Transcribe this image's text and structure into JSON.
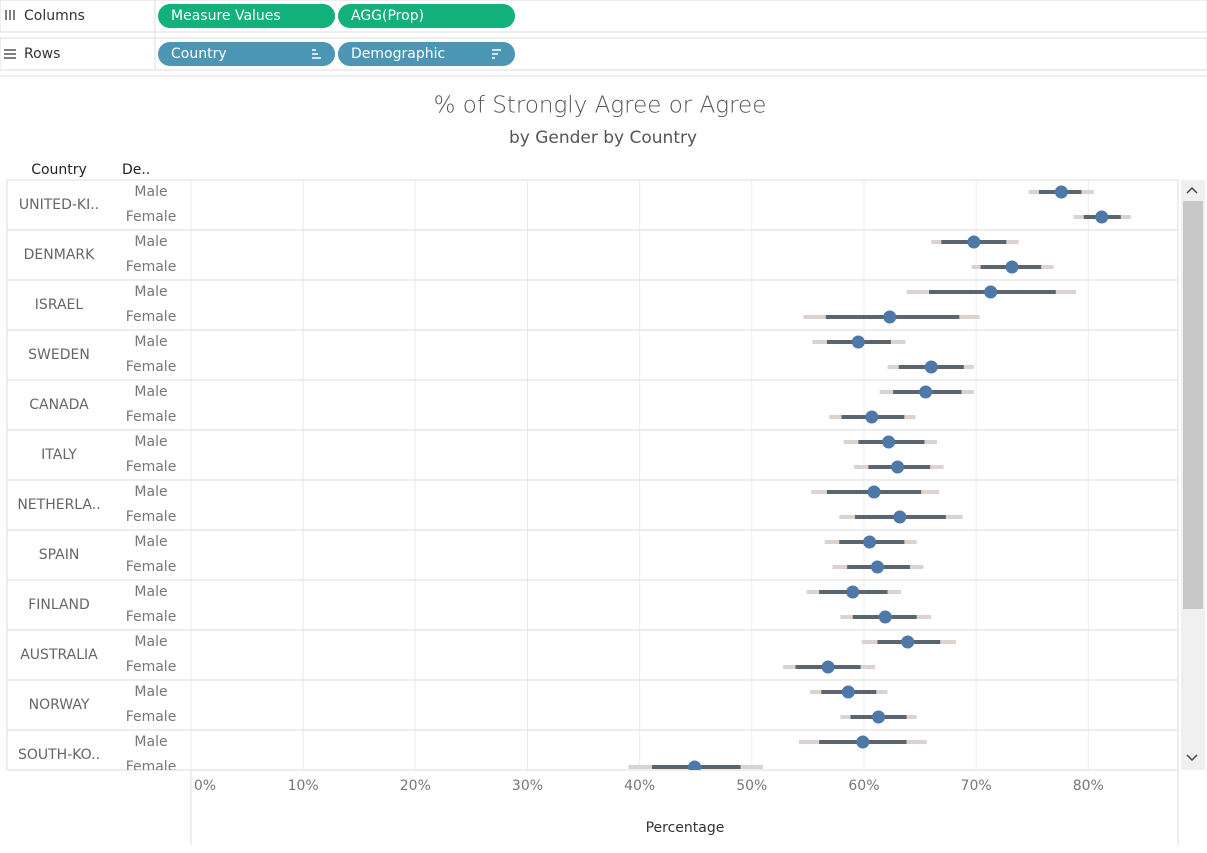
{
  "shelves": {
    "columns": {
      "label": "Columns",
      "pills": [
        "Measure Values",
        "AGG(Prop)"
      ]
    },
    "rows": {
      "label": "Rows",
      "pills": [
        "Country",
        "Demographic"
      ]
    }
  },
  "chart_data": {
    "type": "dot-interval",
    "title": "% of Strongly Agree or Agree",
    "subtitle": "by Gender by Country",
    "row_header": "Country",
    "group_header": "De..",
    "x_label": "Percentage",
    "xlim": [
      0,
      88
    ],
    "xticks": [
      {
        "value": 0,
        "label": "0%"
      },
      {
        "value": 10,
        "label": "10%"
      },
      {
        "value": 20,
        "label": "20%"
      },
      {
        "value": 30,
        "label": "30%"
      },
      {
        "value": 40,
        "label": "40%"
      },
      {
        "value": 50,
        "label": "50%"
      },
      {
        "value": 60,
        "label": "60%"
      },
      {
        "value": 70,
        "label": "70%"
      },
      {
        "value": 80,
        "label": "80%"
      }
    ],
    "grid": true,
    "point_color": "#4e78a8",
    "inner_color": "#5a6570",
    "outer_color": "#dcd2cf",
    "categories": [
      "UNITED-KI..",
      "DENMARK",
      "ISRAEL",
      "SWEDEN",
      "CANADA",
      "ITALY",
      "NETHERLA..",
      "SPAIN",
      "FINLAND",
      "AUSTRALIA",
      "NORWAY",
      "SOUTH-KO.."
    ],
    "series": [
      {
        "name": "Male",
        "values": [
          77.6,
          69.8,
          71.3,
          59.5,
          65.5,
          62.2,
          60.9,
          60.5,
          59.0,
          63.9,
          58.6,
          59.9
        ],
        "inner_low": [
          75.6,
          66.9,
          65.8,
          56.7,
          62.6,
          59.5,
          56.7,
          57.8,
          56.0,
          61.2,
          56.2,
          56.0
        ],
        "inner_high": [
          79.4,
          72.7,
          77.1,
          62.4,
          68.7,
          65.4,
          65.1,
          63.6,
          62.1,
          66.8,
          61.1,
          63.8
        ],
        "outer_low": [
          74.7,
          66.0,
          63.8,
          55.4,
          61.4,
          58.2,
          55.3,
          56.5,
          54.9,
          59.8,
          55.2,
          54.2
        ],
        "outer_high": [
          80.5,
          73.8,
          78.9,
          63.7,
          69.8,
          66.5,
          66.7,
          64.7,
          63.3,
          68.2,
          62.1,
          65.6
        ]
      },
      {
        "name": "Female",
        "values": [
          81.2,
          73.2,
          62.3,
          66.0,
          60.7,
          63.0,
          63.2,
          61.2,
          61.9,
          56.8,
          61.3,
          44.9
        ],
        "inner_low": [
          79.6,
          70.4,
          56.6,
          63.1,
          58.0,
          60.4,
          59.2,
          58.5,
          59.0,
          53.9,
          58.8,
          41.1
        ],
        "inner_high": [
          82.9,
          75.8,
          68.5,
          68.9,
          63.6,
          65.9,
          67.3,
          64.1,
          64.7,
          59.7,
          63.8,
          49.0
        ],
        "outer_low": [
          78.7,
          69.6,
          54.6,
          62.1,
          56.9,
          59.1,
          57.8,
          57.2,
          57.9,
          52.8,
          57.9,
          39.0
        ],
        "outer_high": [
          83.8,
          76.9,
          70.3,
          69.8,
          64.6,
          67.1,
          68.8,
          65.3,
          66.0,
          61.0,
          64.7,
          51.0
        ]
      }
    ]
  }
}
